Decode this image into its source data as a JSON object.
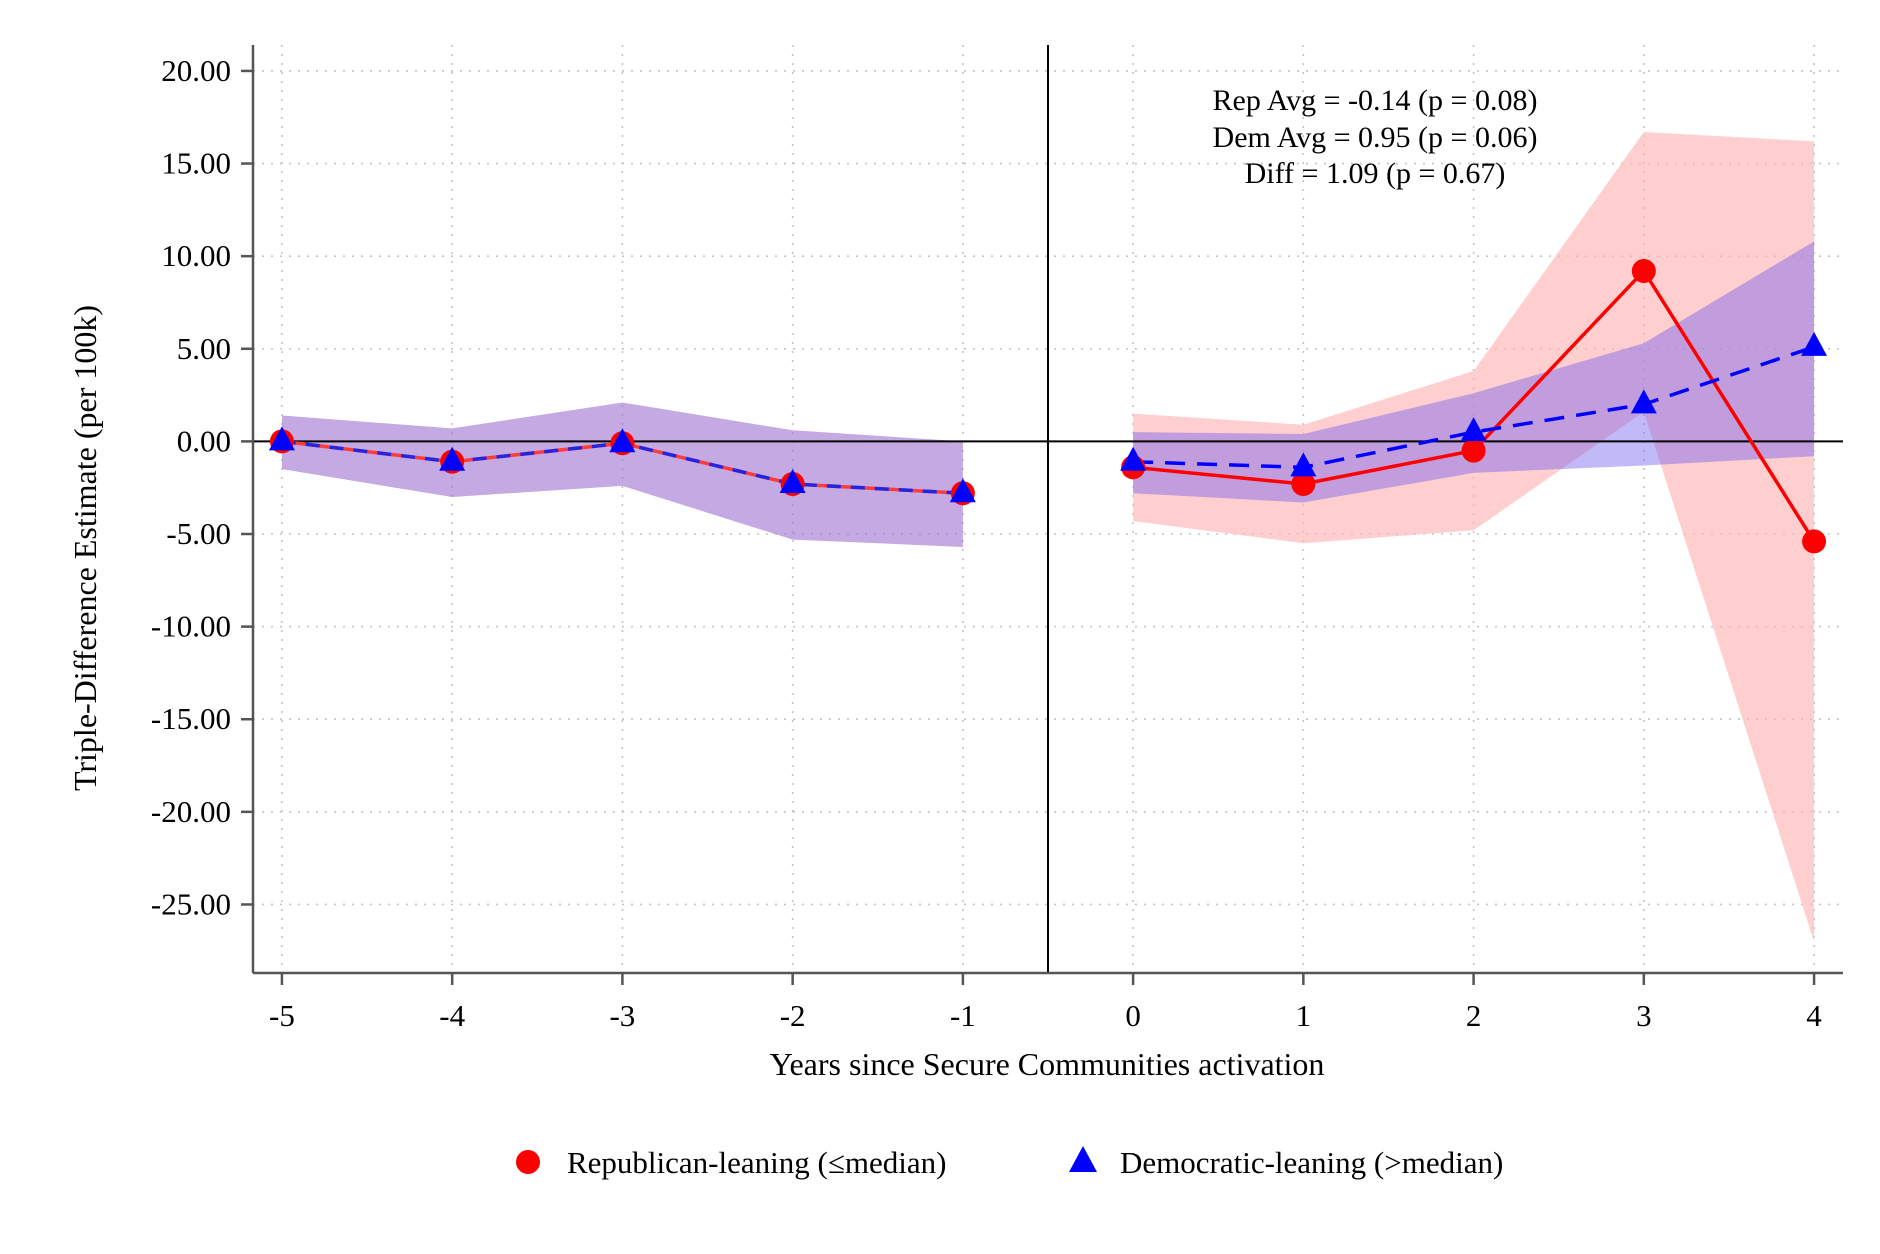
{
  "chart_data": {
    "type": "line",
    "xlabel": "Years since Secure Communities activation",
    "ylabel": "Triple-Difference Estimate (per 100k)",
    "x": [
      -5,
      -4,
      -3,
      -2,
      -1,
      0,
      1,
      2,
      3,
      4
    ],
    "x_tick_labels": [
      "-5",
      "-4",
      "-3",
      "-2",
      "-1",
      "0",
      "1",
      "2",
      "3",
      "4"
    ],
    "y_ticks": [
      20,
      15,
      10,
      5,
      0,
      -5,
      -10,
      -15,
      -20,
      -25
    ],
    "y_tick_labels": [
      "20.00",
      "15.00",
      "10.00",
      "5.00",
      "0.00",
      "-5.00",
      "-10.00",
      "-15.00",
      "-20.00",
      "-25.00"
    ],
    "xlim": [
      -5.17,
      4.17
    ],
    "ylim": [
      -28.7,
      21.4
    ],
    "grid": true,
    "event_line_x": -0.5,
    "zero_line_y": 0,
    "legend_position": "bottom",
    "annotations": [
      "Rep Avg = -0.14 (p = 0.08)",
      "Dem Avg = 0.95 (p = 0.06)",
      "Diff = 1.09 (p = 0.67)"
    ],
    "series": [
      {
        "name": "Republican-leaning (≤median)",
        "marker": "circle",
        "line_style": "solid",
        "color": "#ff0000",
        "ci_color": "#ffb6b6",
        "pre_line_color": "#ff3b3b",
        "values": [
          0.0,
          -1.1,
          -0.1,
          -2.3,
          -2.8,
          -1.4,
          -2.3,
          -0.5,
          9.2,
          -5.4
        ],
        "ci_low": [
          -1.5,
          -3.0,
          -2.4,
          -5.3,
          -5.7,
          -4.3,
          -5.5,
          -4.8,
          1.6,
          -27.0
        ],
        "ci_high": [
          1.4,
          0.7,
          2.1,
          0.6,
          0.0,
          1.5,
          0.9,
          3.8,
          16.7,
          16.2
        ]
      },
      {
        "name": "Democratic-leaning (>median)",
        "marker": "triangle",
        "line_style": "dashed",
        "color": "#0000ff",
        "ci_color": "#b3b3ff",
        "pre_line_color": "#2525e0",
        "values": [
          0.0,
          -1.1,
          -0.1,
          -2.3,
          -2.8,
          -1.1,
          -1.4,
          0.5,
          2.0,
          5.1
        ],
        "ci_low": [
          -1.5,
          -3.0,
          -2.4,
          -5.3,
          -5.7,
          -2.8,
          -3.3,
          -1.7,
          -1.3,
          -0.8
        ],
        "ci_high": [
          1.4,
          0.7,
          2.1,
          0.6,
          0.0,
          0.5,
          0.4,
          2.6,
          5.3,
          10.8
        ]
      }
    ]
  }
}
